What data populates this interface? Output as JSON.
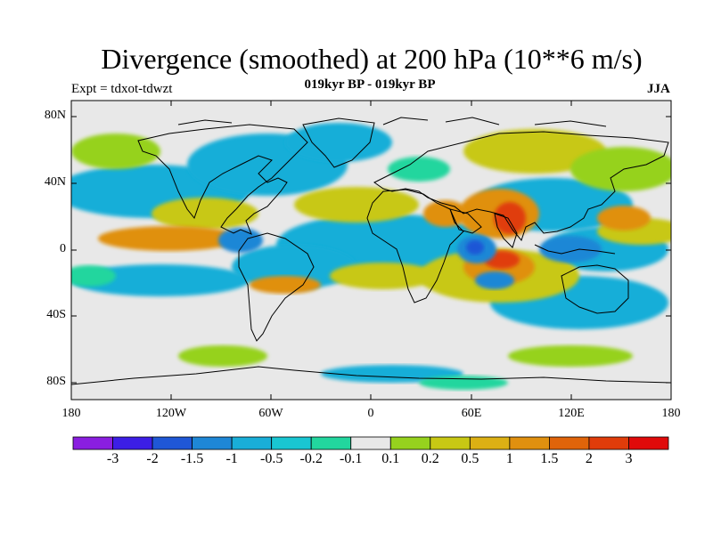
{
  "title": "Divergence (smoothed) at 200 hPa (10**6 m/s)",
  "expt": "Expt = tdxot-tdwzt",
  "subtitle": "019kyr BP - 019kyr BP",
  "season": "JJA",
  "lat_labels": [
    "80N",
    "40N",
    "0",
    "40S",
    "80S"
  ],
  "lon_labels": [
    "180",
    "120W",
    "60W",
    "0",
    "60E",
    "120E",
    "180"
  ],
  "colorbar": {
    "labels": [
      "-3",
      "-2",
      "-1.5",
      "-1",
      "-0.5",
      "-0.2",
      "-0.1",
      "0.1",
      "0.2",
      "0.5",
      "1",
      "1.5",
      "2",
      "3"
    ],
    "colors": [
      "#8a1ee0",
      "#3c1ee6",
      "#1f57d6",
      "#1e87d6",
      "#19aed8",
      "#19c6d2",
      "#22d69e",
      "#e8e8e8",
      "#96d21e",
      "#c8c814",
      "#dcb014",
      "#e0900f",
      "#e0640a",
      "#e03c0a",
      "#e00a0a"
    ]
  },
  "map_colors": {
    "background": "#e8e8e8",
    "blue_strong": "#1f57d6",
    "blue": "#1e87d6",
    "cyan": "#19aed8",
    "teal": "#22d69e",
    "green": "#96d21e",
    "yellow": "#c8c814",
    "orange": "#e0900f",
    "red": "#e03c0a",
    "coast": "#000000"
  }
}
